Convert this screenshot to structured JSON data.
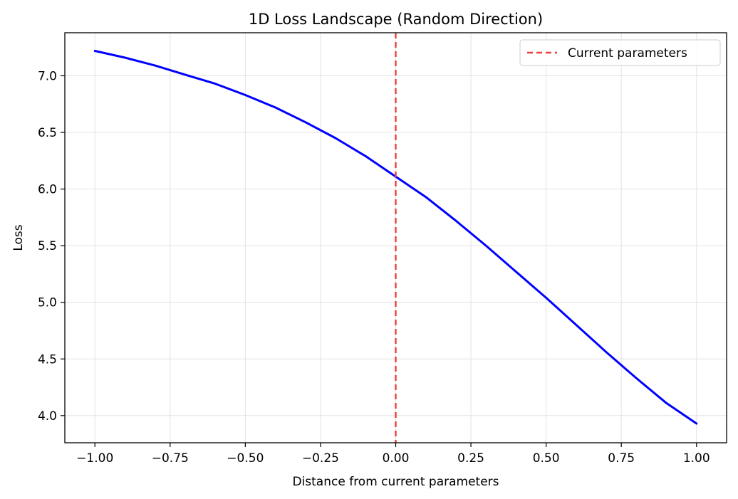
{
  "chart_data": {
    "type": "line",
    "title": "1D Loss Landscape (Random Direction)",
    "xlabel": "Distance from current parameters",
    "ylabel": "Loss",
    "xlim": [
      -1.1,
      1.1
    ],
    "ylim": [
      3.76,
      7.38
    ],
    "xticks": [
      -1.0,
      -0.75,
      -0.5,
      -0.25,
      0.0,
      0.25,
      0.5,
      0.75,
      1.0
    ],
    "xtick_labels": [
      "−1.00",
      "−0.75",
      "−0.50",
      "−0.25",
      "0.00",
      "0.25",
      "0.50",
      "0.75",
      "1.00"
    ],
    "yticks": [
      4.0,
      4.5,
      5.0,
      5.5,
      6.0,
      6.5,
      7.0
    ],
    "ytick_labels": [
      "4.0",
      "4.5",
      "5.0",
      "5.5",
      "6.0",
      "6.5",
      "7.0"
    ],
    "grid": true,
    "legend": {
      "placement": "top-right"
    },
    "series": [
      {
        "color": "#0000ff",
        "x": [
          -1.0,
          -0.9,
          -0.8,
          -0.7,
          -0.6,
          -0.5,
          -0.4,
          -0.3,
          -0.2,
          -0.1,
          0.0,
          0.1,
          0.2,
          0.3,
          0.4,
          0.5,
          0.6,
          0.7,
          0.8,
          0.9,
          1.0
        ],
        "y": [
          7.22,
          7.16,
          7.09,
          7.01,
          6.93,
          6.83,
          6.72,
          6.59,
          6.45,
          6.29,
          6.11,
          5.93,
          5.72,
          5.5,
          5.27,
          5.04,
          4.8,
          4.56,
          4.33,
          4.11,
          3.93
        ]
      },
      {
        "name": "Current parameters",
        "type": "vline",
        "color": "#ee3e3e",
        "x": 0.0
      }
    ]
  }
}
